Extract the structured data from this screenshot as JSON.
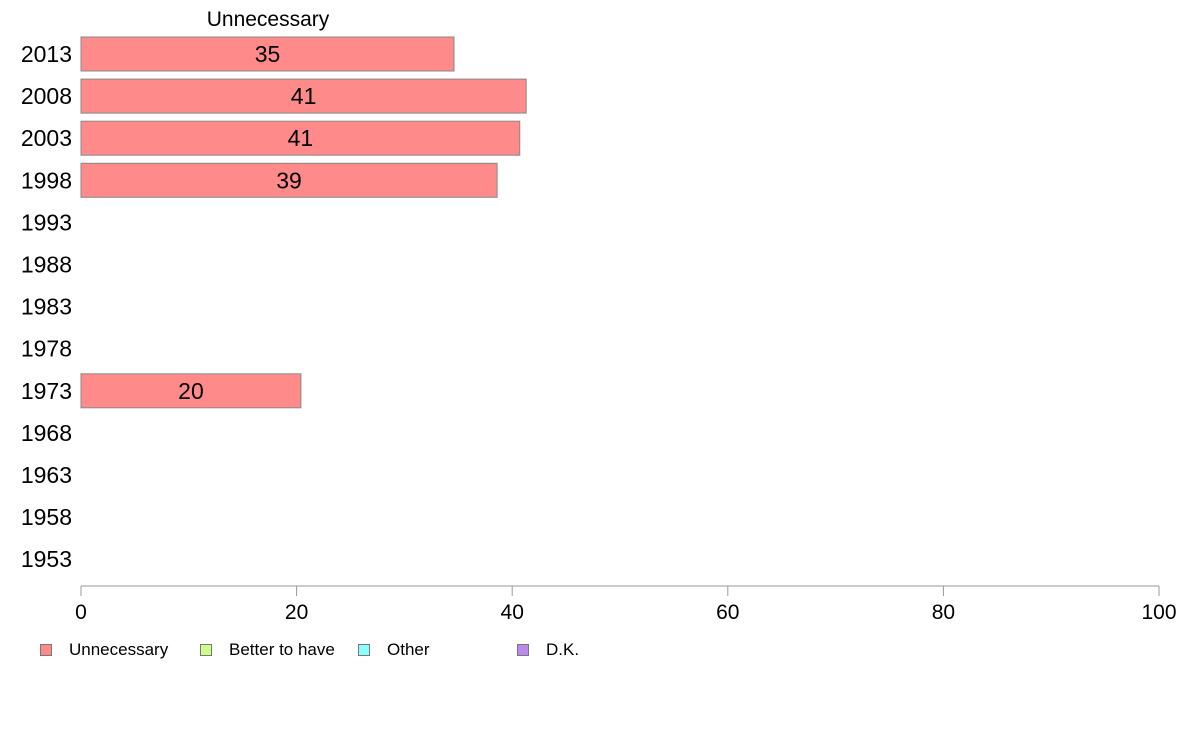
{
  "chart_data": {
    "type": "bar",
    "orientation": "horizontal",
    "title": "Unnecessary",
    "categories": [
      "2013",
      "2008",
      "2003",
      "1998",
      "1993",
      "1988",
      "1983",
      "1978",
      "1973",
      "1968",
      "1963",
      "1958",
      "1953"
    ],
    "series": [
      {
        "name": "Unnecessary",
        "color": "#ff8a8a",
        "values": [
          35,
          41,
          41,
          39,
          null,
          null,
          null,
          null,
          20,
          null,
          null,
          null,
          null
        ],
        "bar_values": [
          34.6,
          41.3,
          40.7,
          38.6,
          null,
          null,
          null,
          null,
          20.4,
          null,
          null,
          null,
          null
        ]
      }
    ],
    "xlim": [
      0,
      100
    ],
    "xticks": [
      "0",
      "20",
      "40",
      "60",
      "80",
      "100"
    ],
    "xlabel": "",
    "ylabel": "",
    "grid": false,
    "legend": {
      "position": "bottom-left",
      "items": [
        {
          "label": "Unnecessary",
          "color": "#ff8a8a"
        },
        {
          "label": "Better to have",
          "color": "#ccff88"
        },
        {
          "label": "Other",
          "color": "#88ffff"
        },
        {
          "label": "D.K.",
          "color": "#bb88ee"
        }
      ]
    }
  }
}
